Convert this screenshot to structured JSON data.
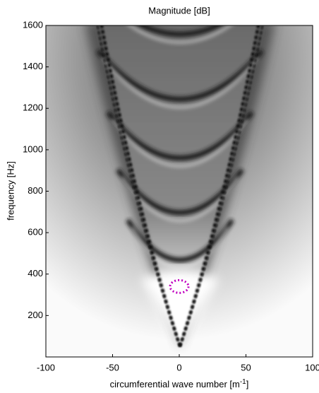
{
  "chart_data": {
    "type": "heatmap-image",
    "title": "Magnitude [dB]",
    "xlabel": {
      "text": "circumferential wave number [m",
      "superscript": "-1",
      "suffix": "]"
    },
    "ylabel": "frequency [Hz]",
    "xlim": [
      -100,
      100
    ],
    "xticks": [
      -100,
      -50,
      0,
      50,
      100
    ],
    "ylim": [
      0,
      1600
    ],
    "yticks": [
      200,
      400,
      600,
      800,
      1000,
      1200,
      1400,
      1600
    ],
    "marker": {
      "x": 0,
      "y": 340,
      "color": "#c000c0"
    }
  }
}
